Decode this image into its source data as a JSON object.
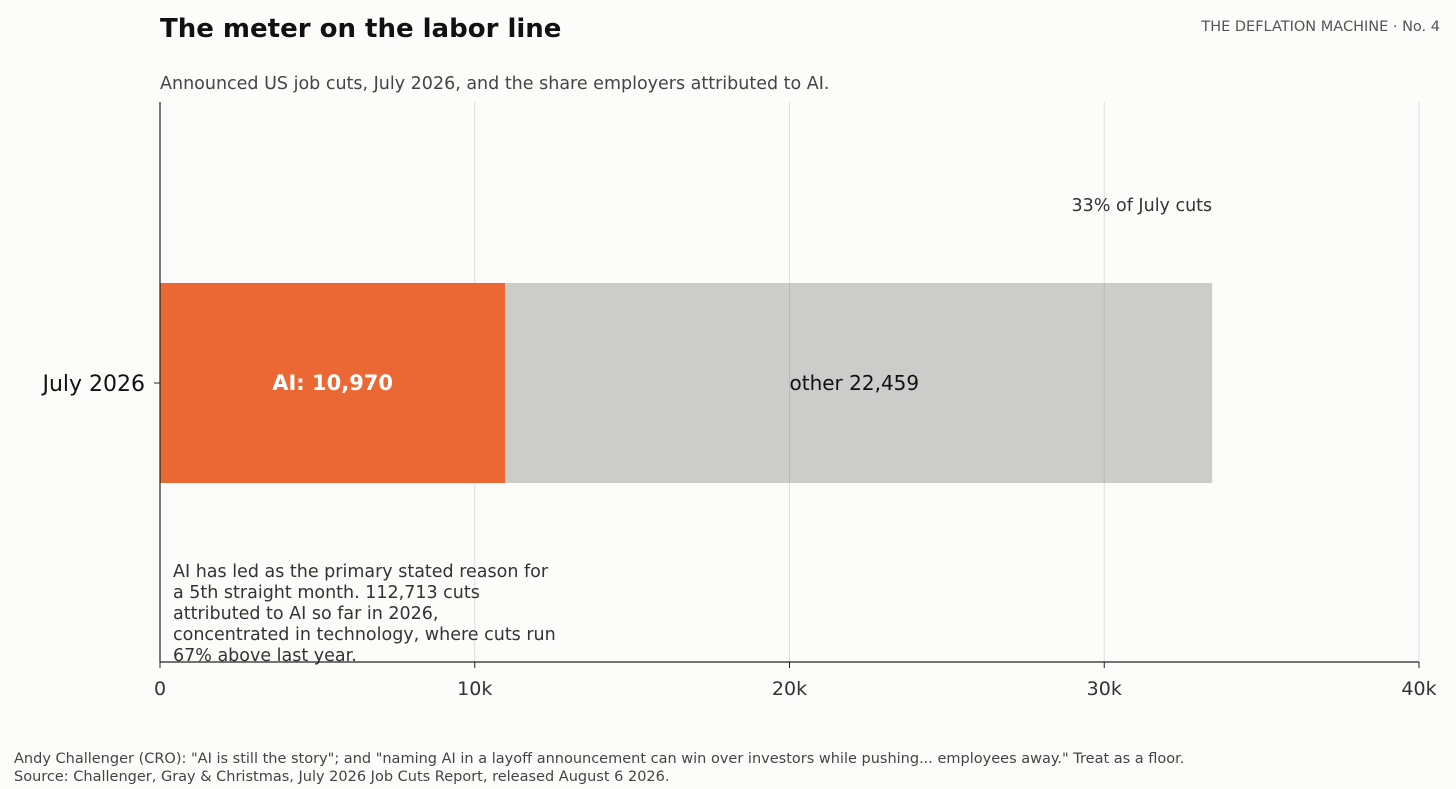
{
  "header": {
    "title": "The meter on the labor line",
    "series_tag": "THE DEFLATION MACHINE · No. 4",
    "subtitle": "Announced US job cuts, July 2026, and the share employers attributed to AI."
  },
  "chart_data": {
    "type": "bar",
    "orientation": "horizontal",
    "stacked": true,
    "categories": [
      "July 2026"
    ],
    "series": [
      {
        "name": "AI",
        "values": [
          10970
        ],
        "color": "#eb6834",
        "label": "AI: 10,970"
      },
      {
        "name": "other",
        "values": [
          22459
        ],
        "color": "#cccccb",
        "label": "other 22,459"
      }
    ],
    "xlim": [
      0,
      40000
    ],
    "xticks": [
      0,
      10000,
      20000,
      30000,
      40000
    ],
    "xtick_labels": [
      "0",
      "10k",
      "20k",
      "30k",
      "40k"
    ],
    "grid": {
      "x": true,
      "y": false,
      "color": "#dddddd"
    },
    "share_annotation": "33% of July cuts",
    "note_lines": [
      "AI has led as the primary stated reason for",
      "a 5th straight month. 112,713 cuts",
      "attributed to AI so far in 2026,",
      "concentrated in technology, where cuts run",
      "67% above last year."
    ]
  },
  "footer": {
    "quote": "Andy Challenger (CRO): \"AI is still the story\"; and \"naming AI in a layoff announcement can win over investors while pushing... employees away.\" Treat as a floor.",
    "source": "Source: Challenger, Gray & Christmas, July 2026 Job Cuts Report, released August 6 2026."
  }
}
